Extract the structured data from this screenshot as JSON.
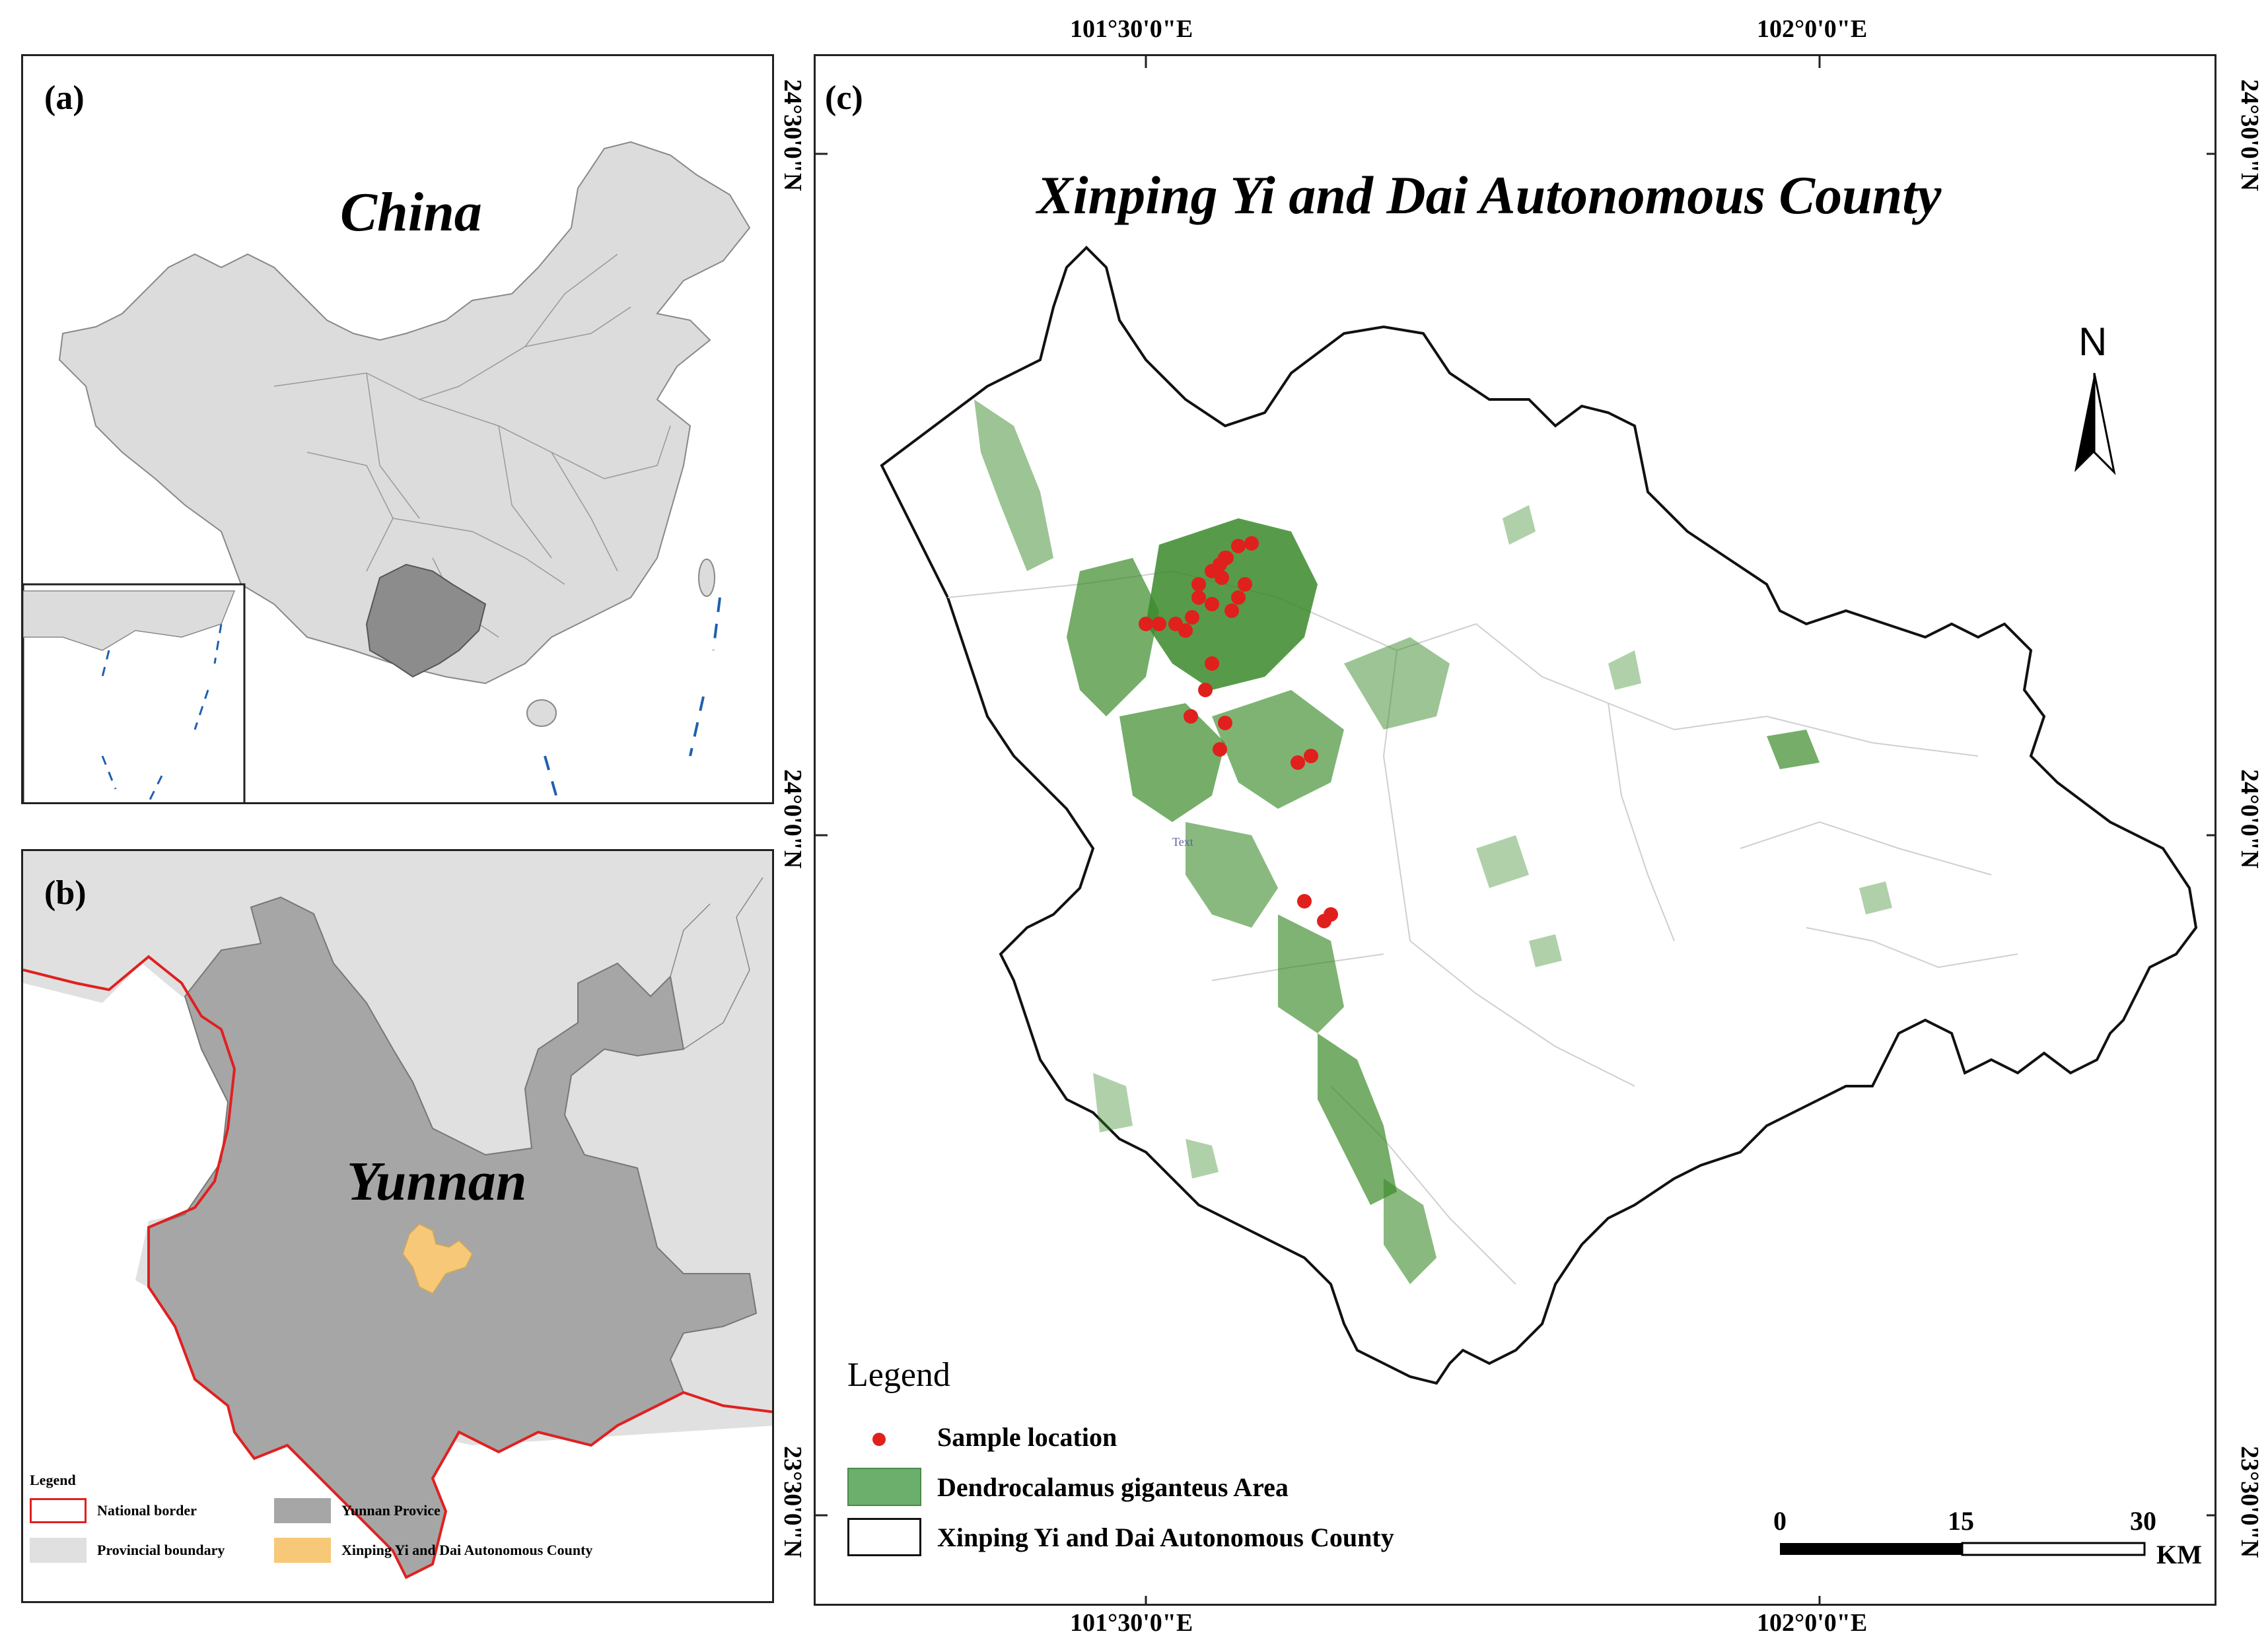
{
  "panel_a": {
    "label": "(a)",
    "country_name": "China"
  },
  "panel_b": {
    "label": "(b)",
    "province_name": "Yunnan",
    "legend": {
      "title": "Legend",
      "items": [
        {
          "label": "National border",
          "color": "#e02020",
          "kind": "outline"
        },
        {
          "label": "Yunnan Provice",
          "color": "#a6a6a6",
          "kind": "fill"
        },
        {
          "label": "Provincial boundary",
          "color": "#e0e0e0",
          "kind": "fill"
        },
        {
          "label": "Xinping Yi and Dai Autonomous County",
          "color": "#f6c878",
          "kind": "fill"
        }
      ]
    }
  },
  "panel_c": {
    "label": "(c)",
    "title": "Xinping Yi and Dai Autonomous County",
    "north_label": "N",
    "top_ticks": [
      "101°30'0\"E",
      "102°0'0\"E"
    ],
    "bottom_ticks": [
      "101°30'0\"E",
      "102°0'0\"E"
    ],
    "left_ticks": [
      "24°30'0\"N",
      "24°0'0\"N",
      "23°30'0\"N"
    ],
    "right_ticks": [
      "24°30'0\"N",
      "24°0'0\"N",
      "23°30'0\"N"
    ],
    "map_text": "Text",
    "legend": {
      "title": "Legend",
      "items": [
        {
          "label": "Sample location",
          "color": "#e0201c",
          "kind": "point"
        },
        {
          "label": "Dendrocalamus giganteus Area",
          "color": "#6cae6c",
          "kind": "fill"
        },
        {
          "label": "Xinping Yi and Dai Autonomous County",
          "color": "#ffffff",
          "kind": "outline"
        }
      ]
    },
    "scale_bar": {
      "ticks": [
        "0",
        "15",
        "30"
      ],
      "unit": "KM"
    }
  },
  "colors": {
    "bamboo": "#3a8a2a",
    "sample": "#e0201c",
    "county_outline": "#111111",
    "province": "#a6a6a6",
    "china": "#dcdcdc",
    "national_border": "#e02020",
    "county_highlight": "#f6c878",
    "sea_border": "#1f5fb0"
  }
}
